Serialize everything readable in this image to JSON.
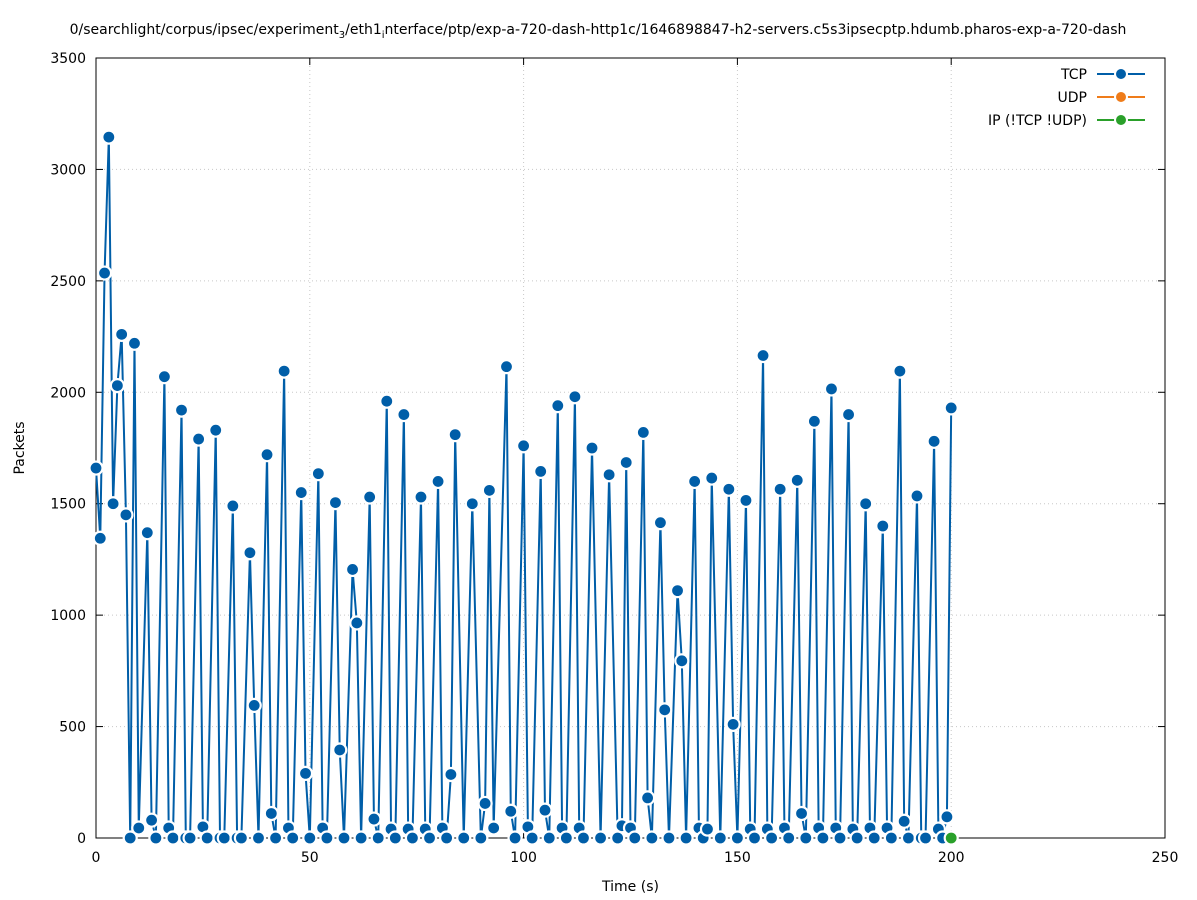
{
  "chart_data": {
    "type": "line",
    "title": "0/searchlight/corpus/ipsec/experiment",
    "title_sub": "3",
    "title_rest": "/eth1",
    "title_sub2": "i",
    "title_tail": "nterface/ptp/exp-a-720-dash-http1c/1646898847-h2-servers.c5s3ipsecptp.hdumb.pharos-exp-a-720-dash",
    "xlabel": "Time (s)",
    "ylabel": "Packets",
    "xlim": [
      0,
      250
    ],
    "ylim": [
      0,
      3500
    ],
    "xticks": [
      0,
      50,
      100,
      150,
      200,
      250
    ],
    "yticks": [
      0,
      500,
      1000,
      1500,
      2000,
      2500,
      3000,
      3500
    ],
    "grid": true,
    "legend_position": "top-right",
    "series": [
      {
        "name": "TCP",
        "color": "#005ea8",
        "x": [
          0,
          1,
          2,
          3,
          4,
          5,
          6,
          7,
          8,
          9,
          10,
          12,
          13,
          14,
          16,
          17,
          18,
          20,
          21,
          22,
          24,
          25,
          26,
          28,
          29,
          30,
          32,
          33,
          34,
          36,
          37,
          38,
          40,
          41,
          42,
          44,
          45,
          46,
          48,
          49,
          50,
          52,
          53,
          54,
          56,
          57,
          58,
          60,
          61,
          62,
          64,
          65,
          66,
          68,
          69,
          70,
          72,
          73,
          74,
          76,
          77,
          78,
          80,
          81,
          82,
          83,
          84,
          86,
          88,
          90,
          91,
          92,
          93,
          96,
          97,
          98,
          100,
          101,
          102,
          104,
          105,
          106,
          108,
          109,
          110,
          112,
          113,
          114,
          116,
          118,
          120,
          122,
          123,
          124,
          125,
          126,
          128,
          129,
          130,
          132,
          133,
          134,
          136,
          137,
          138,
          140,
          141,
          142,
          143,
          144,
          146,
          148,
          149,
          150,
          152,
          153,
          154,
          156,
          157,
          158,
          160,
          161,
          162,
          164,
          165,
          166,
          168,
          169,
          170,
          172,
          173,
          174,
          176,
          177,
          178,
          180,
          181,
          182,
          184,
          185,
          186,
          188,
          189,
          190,
          192,
          193,
          194,
          196,
          197,
          198,
          199,
          200
        ],
        "y": [
          1660,
          1345,
          2535,
          3145,
          1500,
          2030,
          2260,
          1450,
          0,
          2220,
          45,
          1370,
          80,
          0,
          2070,
          45,
          0,
          1920,
          0,
          0,
          1790,
          50,
          0,
          1830,
          0,
          0,
          1490,
          0,
          0,
          1280,
          595,
          0,
          1720,
          110,
          0,
          2095,
          45,
          0,
          1550,
          290,
          0,
          1635,
          45,
          0,
          1505,
          395,
          0,
          1205,
          965,
          0,
          1530,
          85,
          0,
          1960,
          40,
          0,
          1900,
          40,
          0,
          1530,
          40,
          0,
          1600,
          45,
          0,
          285,
          1810,
          0,
          1500,
          0,
          155,
          1560,
          45,
          2115,
          120,
          0,
          1760,
          50,
          0,
          1645,
          125,
          0,
          1940,
          45,
          0,
          1980,
          45,
          0,
          1750,
          0,
          1630,
          0,
          55,
          1685,
          45,
          0,
          1820,
          180,
          0,
          1415,
          575,
          0,
          1110,
          795,
          0,
          1600,
          45,
          0,
          40,
          1615,
          0,
          1565,
          510,
          0,
          1515,
          40,
          0,
          2165,
          40,
          0,
          1565,
          45,
          0,
          1605,
          110,
          0,
          1870,
          45,
          0,
          2015,
          45,
          0,
          1900,
          40,
          0,
          1500,
          45,
          0,
          1400,
          45,
          0,
          2095,
          75,
          0,
          1535,
          0,
          0,
          1780,
          40,
          0,
          95,
          1930
        ]
      },
      {
        "name": "UDP",
        "color": "#ef7c1a",
        "x": [],
        "y": []
      },
      {
        "name": "IP (!TCP  !UDP)",
        "color": "#2aa02a",
        "x": [
          200
        ],
        "y": [
          0
        ]
      }
    ]
  }
}
